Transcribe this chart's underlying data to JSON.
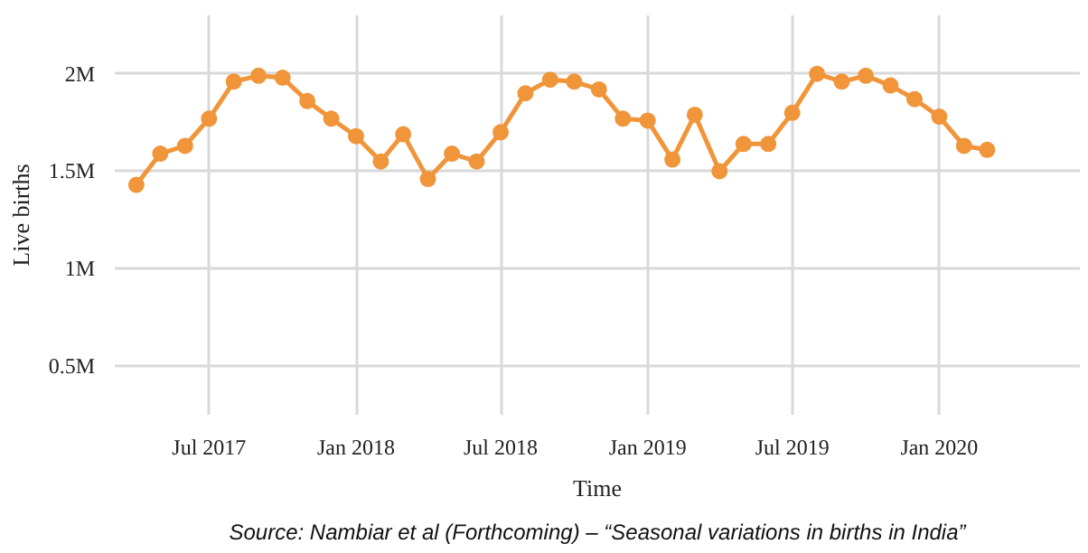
{
  "chart_data": {
    "type": "line",
    "xlabel": "Time",
    "ylabel": "Live births",
    "annotations": [
      "Source: Nambiar et al (Forthcoming) – “Seasonal variations in births in India”"
    ],
    "x": [
      "2017-04",
      "2017-05",
      "2017-06",
      "2017-07",
      "2017-08",
      "2017-09",
      "2017-10",
      "2017-11",
      "2017-12",
      "2018-01",
      "2018-02",
      "2018-03",
      "2018-04",
      "2018-05",
      "2018-06",
      "2018-07",
      "2018-08",
      "2018-09",
      "2018-10",
      "2018-11",
      "2018-12",
      "2019-01",
      "2019-02",
      "2019-03",
      "2019-04",
      "2019-05",
      "2019-06",
      "2019-07",
      "2019-08",
      "2019-09",
      "2019-10",
      "2019-11",
      "2019-12",
      "2020-01",
      "2020-02",
      "2020-03"
    ],
    "series": [
      {
        "color": "#f0953a",
        "values": [
          1430000,
          1590000,
          1630000,
          1770000,
          1960000,
          1990000,
          1980000,
          1860000,
          1770000,
          1680000,
          1550000,
          1690000,
          1460000,
          1590000,
          1550000,
          1700000,
          1900000,
          1970000,
          1960000,
          1920000,
          1770000,
          1760000,
          1560000,
          1790000,
          1500000,
          1640000,
          1640000,
          1800000,
          2000000,
          1960000,
          1990000,
          1940000,
          1870000,
          1780000,
          1630000,
          1610000
        ]
      }
    ],
    "xlim": [
      "2017-03-05",
      "2020-06-25"
    ],
    "xticks": [
      {
        "value": "2017-07",
        "label": "Jul 2017"
      },
      {
        "value": "2018-01",
        "label": "Jan 2018"
      },
      {
        "value": "2018-07",
        "label": "Jul 2018"
      },
      {
        "value": "2019-01",
        "label": "Jan 2019"
      },
      {
        "value": "2019-07",
        "label": "Jul 2019"
      },
      {
        "value": "2020-01",
        "label": "Jan 2020"
      }
    ],
    "ylim": [
      250000,
      2300000
    ],
    "yticks": [
      {
        "value": 500000,
        "label": "0.5M"
      },
      {
        "value": 1000000,
        "label": "1M"
      },
      {
        "value": 1500000,
        "label": "1.5M"
      },
      {
        "value": 2000000,
        "label": "2M"
      }
    ],
    "grid": true,
    "marker": "circle",
    "line_style": "solid"
  }
}
